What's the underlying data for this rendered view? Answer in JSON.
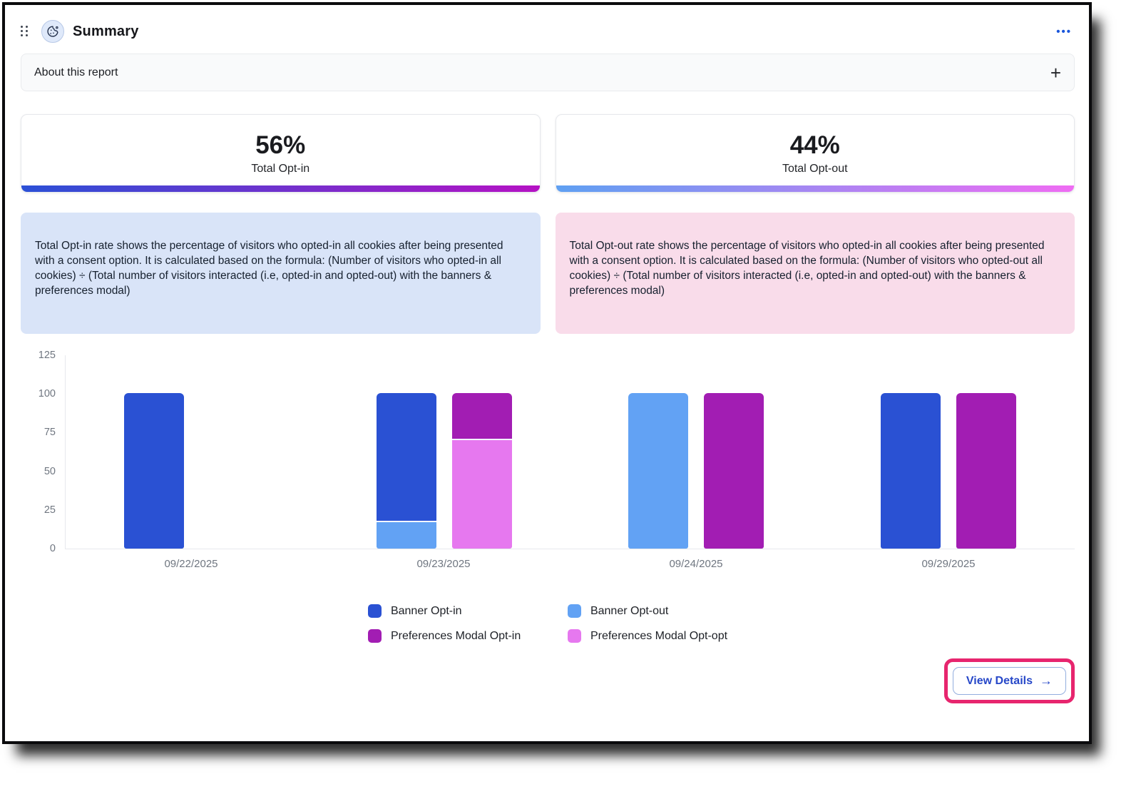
{
  "header": {
    "title": "Summary",
    "menu_icon": "•••"
  },
  "about": {
    "label": "About this report",
    "expand_icon": "+"
  },
  "stats": [
    {
      "value": "56%",
      "label": "Total Opt-in",
      "gradient": [
        "#2b50d6",
        "#b512c4"
      ]
    },
    {
      "value": "44%",
      "label": "Total Opt-out",
      "gradient": [
        "#5fa0f2",
        "#ef6cf3"
      ]
    }
  ],
  "descriptions": [
    {
      "bg": "#d9e4f8",
      "text": "Total Opt-in rate shows the percentage of visitors who opted-in all cookies after being presented with a consent option. It is calculated based on the formula: (Number of visitors who opted-in all cookies) ÷ (Total number of visitors interacted (i.e, opted-in and opted-out) with the banners & preferences modal)"
    },
    {
      "bg": "#f9dcea",
      "text": "Total Opt-out rate shows the percentage of visitors who opted-in all cookies after being presented with a consent option. It is calculated based on the formula: (Number of visitors who opted-out all cookies) ÷ (Total number of visitors interacted (i.e, opted-in and opted-out) with the banners & preferences modal)"
    }
  ],
  "chart_data": {
    "type": "bar",
    "stacked": true,
    "grid": false,
    "legend_position": "bottom",
    "ylim": [
      0,
      125
    ],
    "yticks": [
      125,
      100,
      75,
      50,
      25,
      0
    ],
    "categories": [
      "09/22/2025",
      "09/23/2025",
      "09/24/2025",
      "09/29/2025"
    ],
    "series": [
      {
        "name": "Banner Opt-in",
        "color": "#2a51d3",
        "stack": "banner",
        "values": [
          100,
          83,
          0,
          100
        ]
      },
      {
        "name": "Banner Opt-out",
        "color": "#62a2f4",
        "stack": "banner",
        "values": [
          0,
          17,
          100,
          0
        ]
      },
      {
        "name": "Preferences Modal Opt-in",
        "color": "#a21db3",
        "stack": "preferences",
        "values": [
          0,
          30,
          100,
          100
        ]
      },
      {
        "name": "Preferences Modal Opt-opt",
        "color": "#e678ef",
        "stack": "preferences",
        "values": [
          0,
          70,
          0,
          0
        ]
      }
    ]
  },
  "footer": {
    "view_details_label": "View Details",
    "arrow": "→",
    "annotation_color": "#e7256e"
  }
}
